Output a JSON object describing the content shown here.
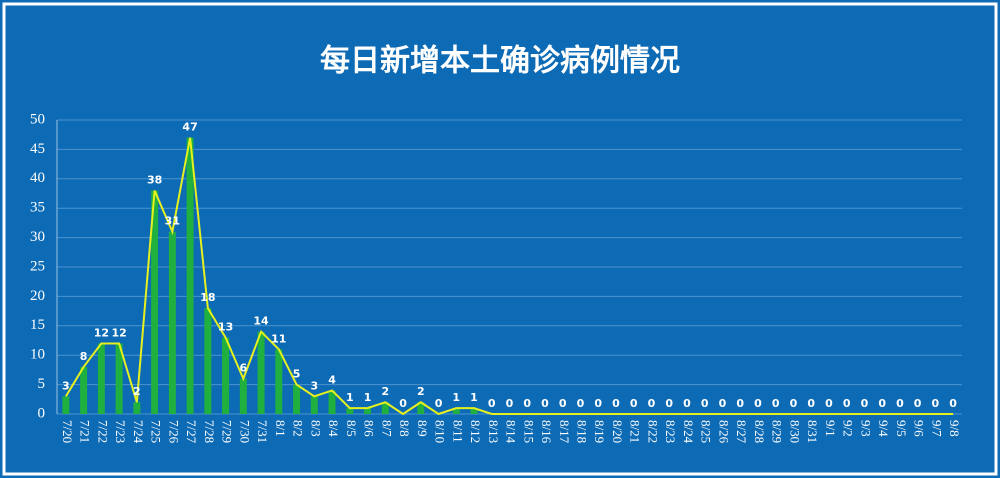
{
  "chart_data": {
    "type": "bar_line",
    "title": "每日新增本土确诊病例情况",
    "categories": [
      "7/20",
      "7/21",
      "7/22",
      "7/23",
      "7/24",
      "7/25",
      "7/26",
      "7/27",
      "7/28",
      "7/29",
      "7/30",
      "7/31",
      "8/1",
      "8/2",
      "8/3",
      "8/4",
      "8/5",
      "8/6",
      "8/7",
      "8/8",
      "8/9",
      "8/10",
      "8/11",
      "8/12",
      "8/13",
      "8/14",
      "8/15",
      "8/16",
      "8/17",
      "8/18",
      "8/19",
      "8/20",
      "8/21",
      "8/22",
      "8/23",
      "8/24",
      "8/25",
      "8/26",
      "8/27",
      "8/28",
      "8/29",
      "8/30",
      "8/31",
      "9/1",
      "9/2",
      "9/3",
      "9/4",
      "9/5",
      "9/6",
      "9/7",
      "9/8"
    ],
    "values": [
      3,
      8,
      12,
      12,
      2,
      38,
      31,
      47,
      18,
      13,
      6,
      14,
      11,
      5,
      3,
      4,
      1,
      1,
      2,
      0,
      2,
      0,
      1,
      1,
      0,
      0,
      0,
      0,
      0,
      0,
      0,
      0,
      0,
      0,
      0,
      0,
      0,
      0,
      0,
      0,
      0,
      0,
      0,
      0,
      0,
      0,
      0,
      0,
      0,
      0,
      0
    ],
    "color": "#1fb040",
    "line_color": "#e6f01e",
    "ylim": [
      0,
      50
    ],
    "yticks": [
      0,
      5,
      10,
      15,
      20,
      25,
      30,
      35,
      40,
      45,
      50
    ],
    "grid": true
  }
}
